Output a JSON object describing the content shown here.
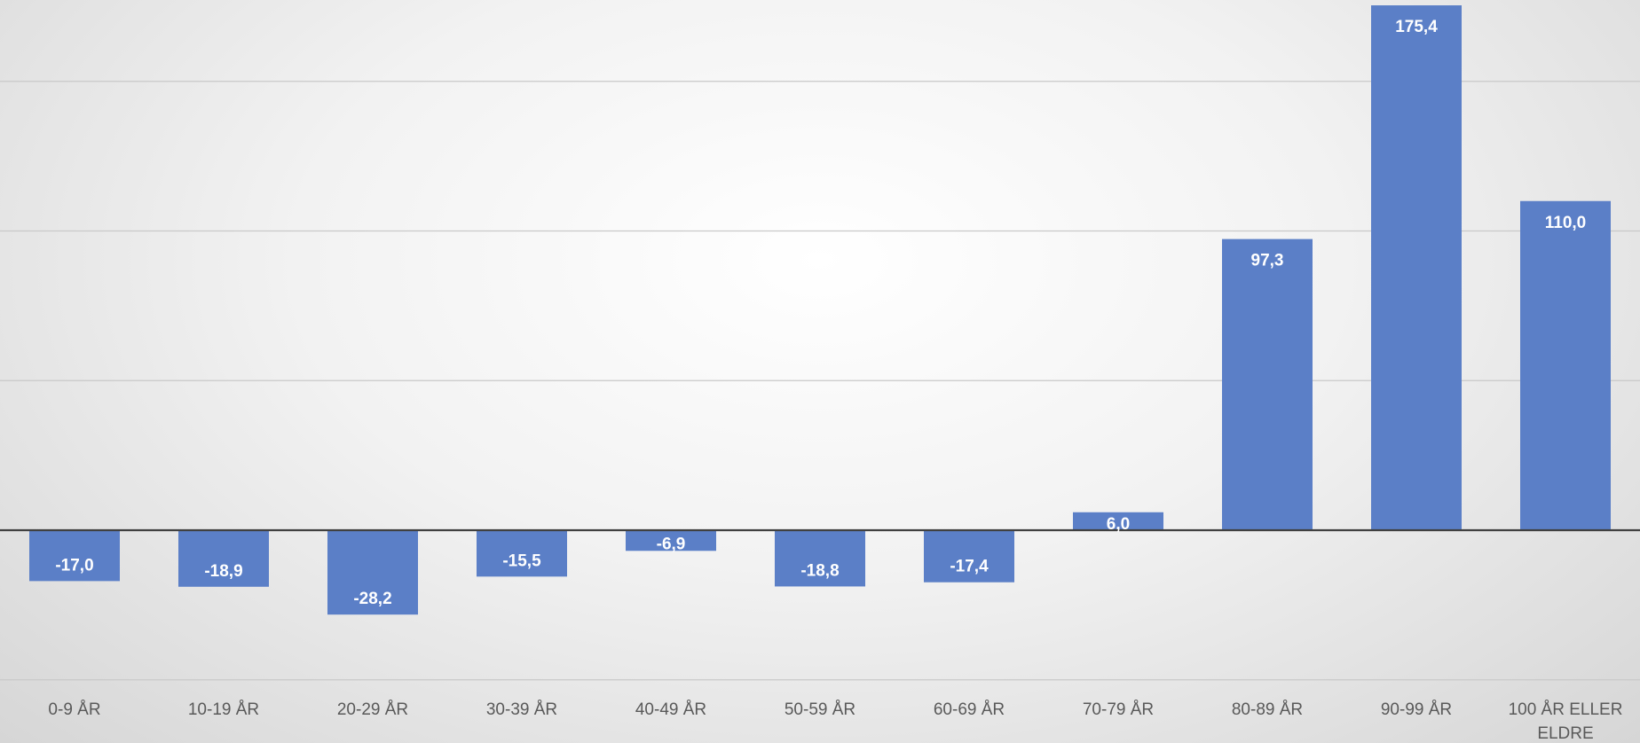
{
  "chart_data": {
    "type": "bar",
    "categories": [
      "0-9 ÅR",
      "10-19 ÅR",
      "20-29 ÅR",
      "30-39 ÅR",
      "40-49 ÅR",
      "50-59 ÅR",
      "60-69 ÅR",
      "70-79 ÅR",
      "80-89 ÅR",
      "90-99 ÅR",
      "100 ÅR ELLER ELDRE"
    ],
    "category_lines": [
      [
        "0-9 ÅR"
      ],
      [
        "10-19 ÅR"
      ],
      [
        "20-29 ÅR"
      ],
      [
        "30-39 ÅR"
      ],
      [
        "40-49 ÅR"
      ],
      [
        "50-59 ÅR"
      ],
      [
        "60-69 ÅR"
      ],
      [
        "70-79 ÅR"
      ],
      [
        "80-89 ÅR"
      ],
      [
        "90-99 ÅR"
      ],
      [
        "100 ÅR ELLER",
        "ELDRE"
      ]
    ],
    "values": [
      -17.0,
      -18.9,
      -28.2,
      -15.5,
      -6.9,
      -18.8,
      -17.4,
      6.0,
      97.3,
      175.4,
      110.0
    ],
    "data_labels": [
      "-17,0",
      "-18,9",
      "-28,2",
      "-15,5",
      "-6,9",
      "-18,8",
      "-17,4",
      "6,0",
      "97,3",
      "175,4",
      "110,0"
    ],
    "ylim": [
      -50,
      176
    ],
    "gridlines": [
      -50,
      50,
      100,
      150
    ],
    "grid": true,
    "legend": "none",
    "colors": {
      "bar": "#5b7fc7",
      "label": "#ffffff",
      "axis": "#404040",
      "grid": "#c9c9c9",
      "tick": "#595959"
    }
  }
}
